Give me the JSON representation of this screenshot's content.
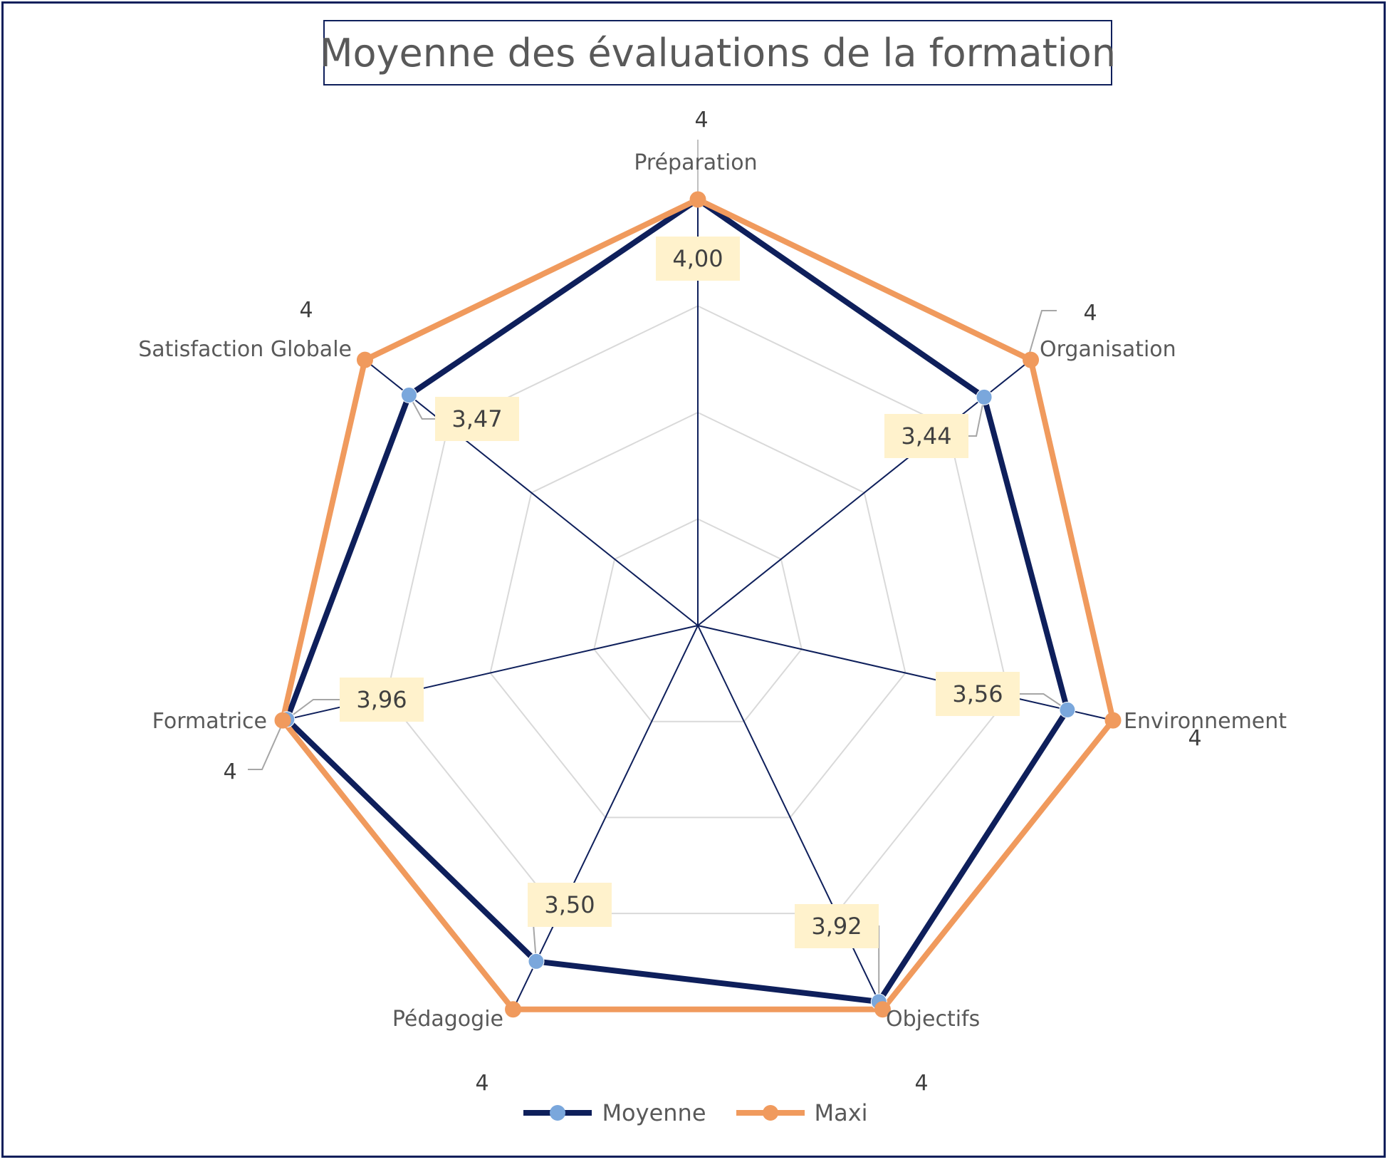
{
  "chart_data": {
    "type": "radar",
    "title": "Moyenne des évaluations de la formation",
    "categories": [
      "Préparation",
      "Organisation",
      "Environnement",
      "Objectifs",
      "Pédagogie",
      "Formatrice",
      "Satisfaction Globale"
    ],
    "rlim": [
      0,
      4
    ],
    "grid": true,
    "series": [
      {
        "name": "Moyenne",
        "values": [
          4.0,
          3.44,
          3.56,
          3.92,
          3.5,
          3.96,
          3.47
        ],
        "data_labels": [
          "4,00",
          "3,44",
          "3,56",
          "3,92",
          "3,50",
          "3,96",
          "3,47"
        ],
        "color": "#0e1f5b",
        "marker_color": "#7aa7dc"
      },
      {
        "name": "Maxi",
        "values": [
          4,
          4,
          4,
          4,
          4,
          4,
          4
        ],
        "data_labels": [
          "4",
          "4",
          "4",
          "4",
          "4",
          "4",
          "4"
        ],
        "color": "#f09a5d",
        "marker_color": "#f09a5d"
      }
    ],
    "legend_position": "bottom"
  },
  "colors": {
    "frame": "#0e1f5b",
    "grid": "#d9d9d9",
    "axis": "#0e1f5b",
    "label_fill": "#fff2cc",
    "leader": "#a6a6a6"
  }
}
